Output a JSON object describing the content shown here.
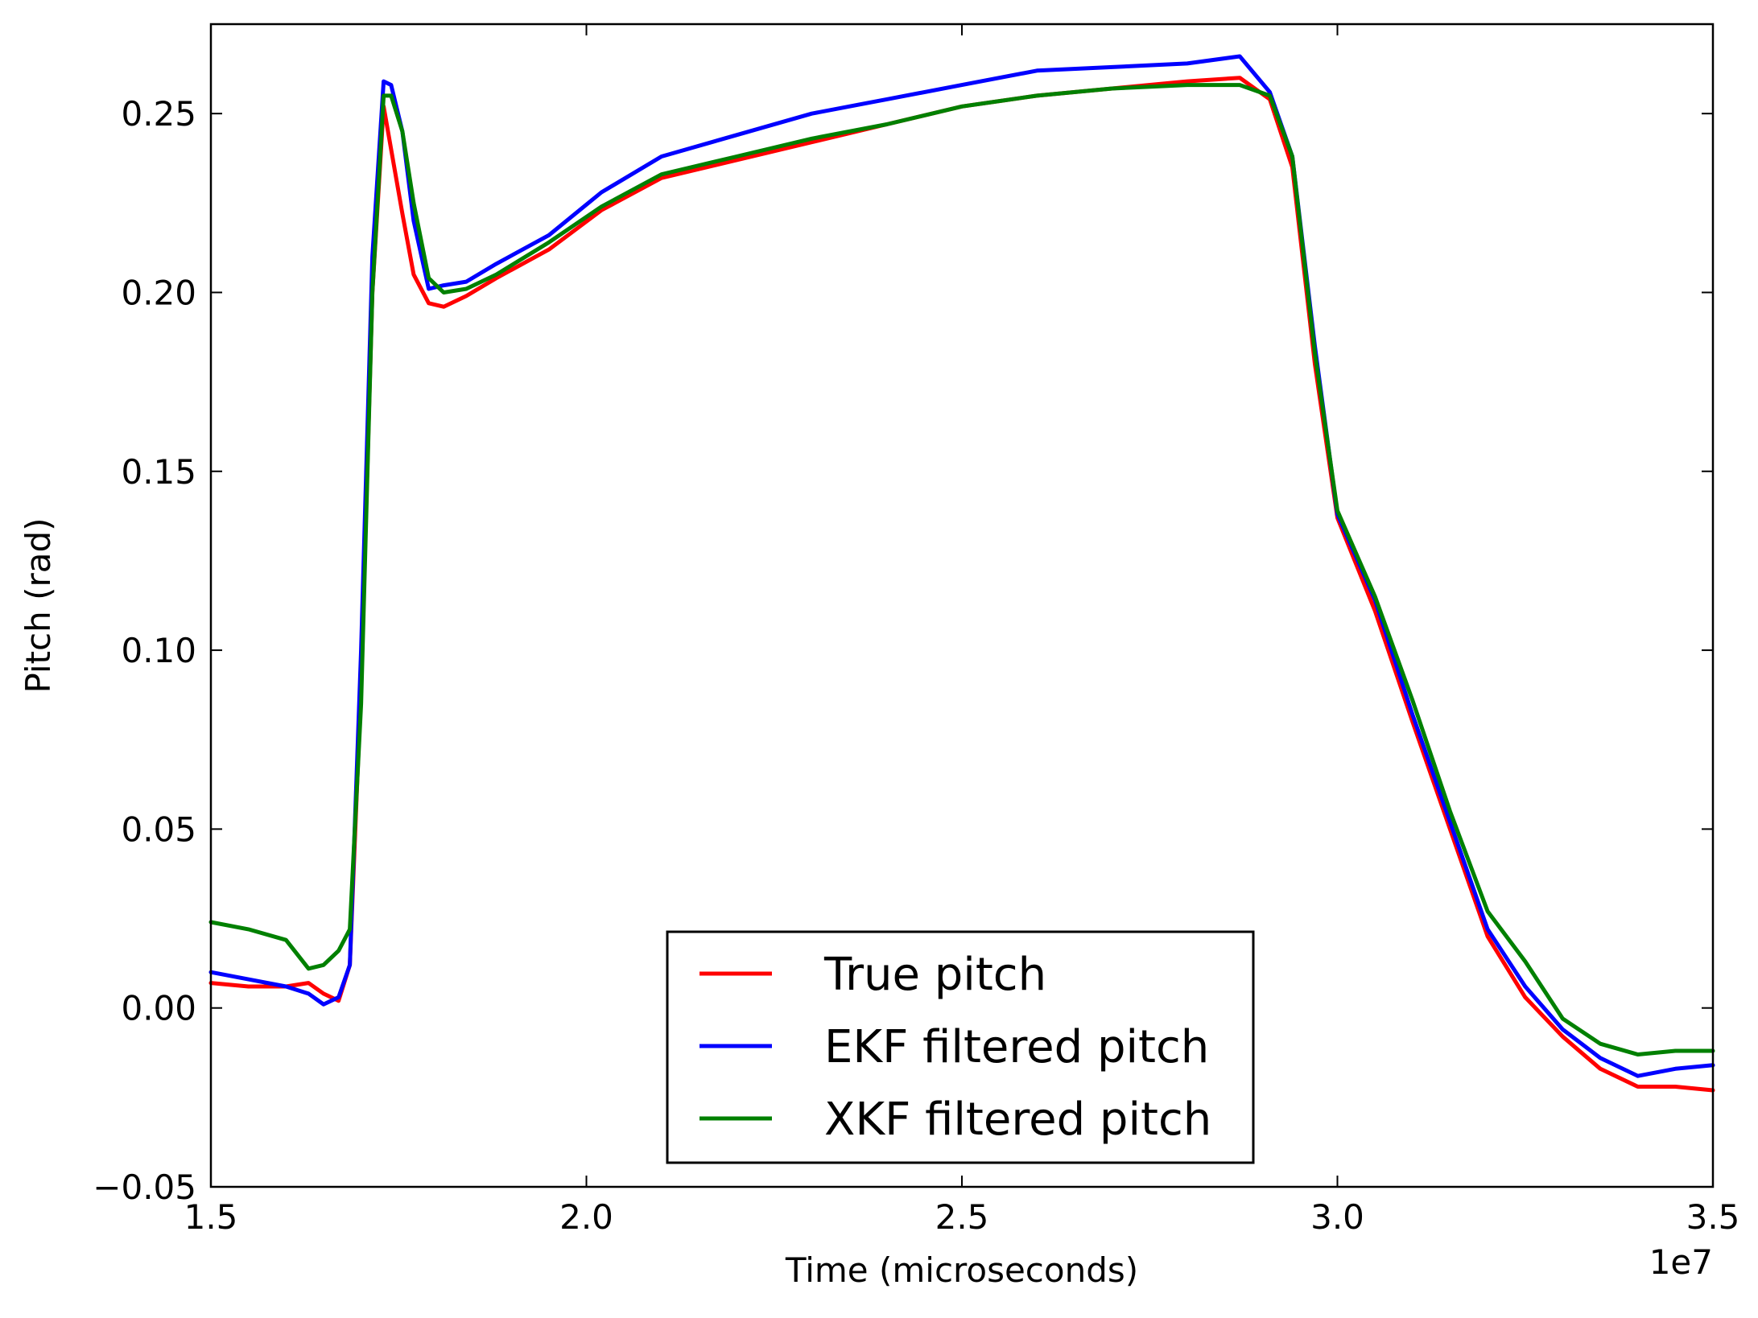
{
  "chart_data": {
    "type": "line",
    "xlabel": "Time (microseconds)",
    "ylabel": "Pitch (rad)",
    "x_offset_label": "1e7",
    "xlim": [
      15000000,
      35000000
    ],
    "ylim": [
      -0.05,
      0.275
    ],
    "x_ticks": [
      15000000,
      20000000,
      25000000,
      30000000,
      35000000
    ],
    "x_tick_labels": [
      "1.5",
      "2.0",
      "2.5",
      "3.0",
      "3.5"
    ],
    "y_ticks": [
      -0.05,
      0.0,
      0.05,
      0.1,
      0.15,
      0.2,
      0.25
    ],
    "y_tick_labels": [
      "−0.05",
      "0.00",
      "0.05",
      "0.10",
      "0.15",
      "0.20",
      "0.25"
    ],
    "grid": false,
    "legend_position": "bottom-center",
    "series": [
      {
        "name": "True pitch",
        "color": "#ff0000",
        "x": [
          15000000,
          15500000,
          16000000,
          16300000,
          16500000,
          16700000,
          16850000,
          17000000,
          17150000,
          17300000,
          17400000,
          17550000,
          17700000,
          17900000,
          18100000,
          18400000,
          18800000,
          19500000,
          20200000,
          21000000,
          22000000,
          23000000,
          24000000,
          25000000,
          26000000,
          27000000,
          28000000,
          28700000,
          29100000,
          29400000,
          29700000,
          30000000,
          30500000,
          31000000,
          31500000,
          32000000,
          32500000,
          33000000,
          33500000,
          34000000,
          34500000,
          35000000
        ],
        "y": [
          0.007,
          0.006,
          0.006,
          0.007,
          0.004,
          0.002,
          0.012,
          0.09,
          0.2,
          0.252,
          0.24,
          0.222,
          0.205,
          0.197,
          0.196,
          0.199,
          0.204,
          0.212,
          0.223,
          0.232,
          0.237,
          0.242,
          0.247,
          0.252,
          0.255,
          0.257,
          0.259,
          0.26,
          0.254,
          0.235,
          0.18,
          0.137,
          0.111,
          0.08,
          0.05,
          0.02,
          0.003,
          -0.008,
          -0.017,
          -0.022,
          -0.022,
          -0.023
        ]
      },
      {
        "name": "EKF filtered pitch",
        "color": "#0000ff",
        "x": [
          15000000,
          15500000,
          16000000,
          16300000,
          16500000,
          16700000,
          16850000,
          17000000,
          17150000,
          17300000,
          17400000,
          17550000,
          17700000,
          17900000,
          18100000,
          18400000,
          18800000,
          19500000,
          20200000,
          21000000,
          22000000,
          23000000,
          24000000,
          25000000,
          26000000,
          27000000,
          28000000,
          28700000,
          29100000,
          29400000,
          29700000,
          30000000,
          30500000,
          31000000,
          31500000,
          32000000,
          32500000,
          33000000,
          33500000,
          34000000,
          34500000,
          35000000
        ],
        "y": [
          0.01,
          0.008,
          0.006,
          0.004,
          0.001,
          0.003,
          0.012,
          0.1,
          0.21,
          0.259,
          0.258,
          0.245,
          0.22,
          0.201,
          0.202,
          0.203,
          0.208,
          0.216,
          0.228,
          0.238,
          0.244,
          0.25,
          0.254,
          0.258,
          0.262,
          0.263,
          0.264,
          0.266,
          0.256,
          0.238,
          0.185,
          0.138,
          0.114,
          0.082,
          0.052,
          0.022,
          0.006,
          -0.006,
          -0.014,
          -0.019,
          -0.017,
          -0.016
        ]
      },
      {
        "name": "XKF filtered pitch",
        "color": "#008000",
        "x": [
          15000000,
          15500000,
          16000000,
          16300000,
          16500000,
          16700000,
          16850000,
          17000000,
          17150000,
          17300000,
          17400000,
          17550000,
          17700000,
          17900000,
          18100000,
          18400000,
          18800000,
          19500000,
          20200000,
          21000000,
          22000000,
          23000000,
          24000000,
          25000000,
          26000000,
          27000000,
          28000000,
          28700000,
          29100000,
          29400000,
          29700000,
          30000000,
          30500000,
          31000000,
          31500000,
          32000000,
          32500000,
          33000000,
          33500000,
          34000000,
          34500000,
          35000000
        ],
        "y": [
          0.024,
          0.022,
          0.019,
          0.011,
          0.012,
          0.016,
          0.022,
          0.085,
          0.2,
          0.255,
          0.255,
          0.245,
          0.225,
          0.204,
          0.2,
          0.201,
          0.205,
          0.214,
          0.224,
          0.233,
          0.238,
          0.243,
          0.247,
          0.252,
          0.255,
          0.257,
          0.258,
          0.258,
          0.255,
          0.238,
          0.183,
          0.139,
          0.115,
          0.086,
          0.055,
          0.027,
          0.013,
          -0.003,
          -0.01,
          -0.013,
          -0.012,
          -0.012
        ]
      }
    ]
  }
}
